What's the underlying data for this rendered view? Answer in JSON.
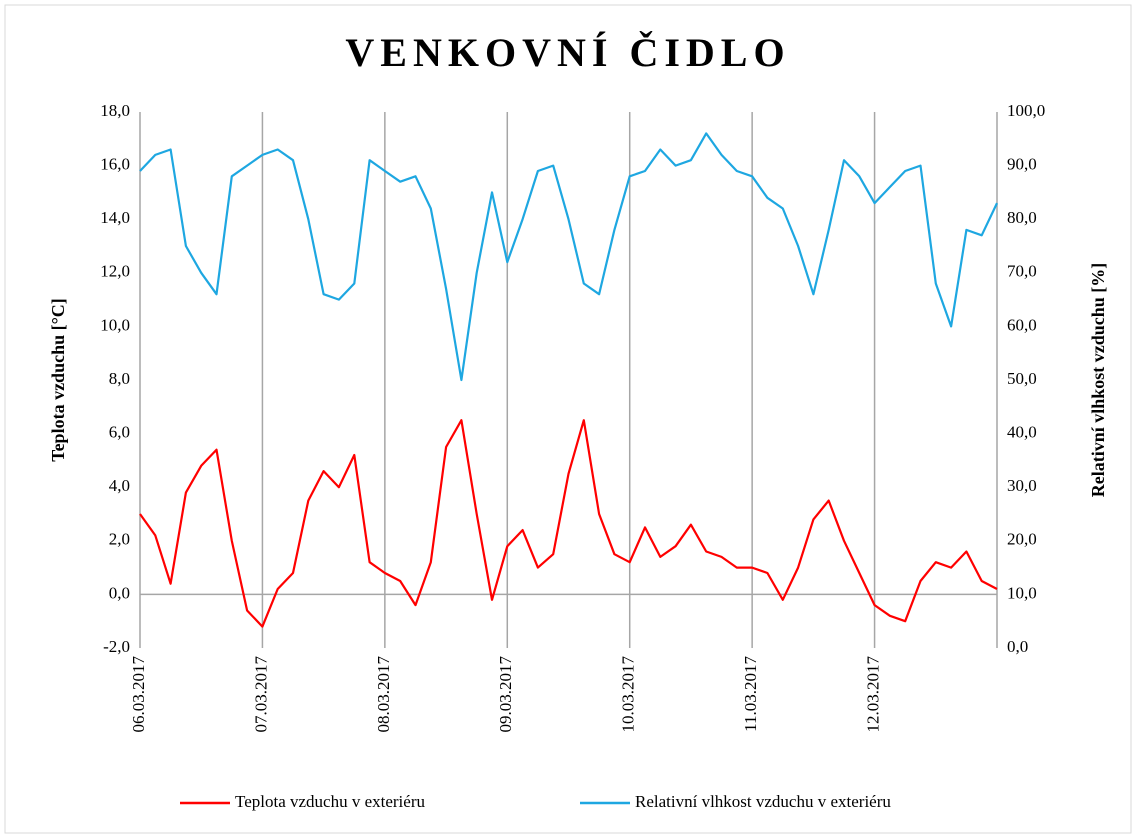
{
  "chart_data": {
    "type": "line",
    "title": "VENKOVNÍ ČIDLO",
    "y_label": "Teplota vzduchu [°C]",
    "y2_label": "Relativní vlhkost vzduchu [%]",
    "categories": [
      "06.03.2017",
      null,
      null,
      null,
      null,
      null,
      null,
      null,
      "07.03.2017",
      null,
      null,
      null,
      null,
      null,
      null,
      null,
      "08.03.2017",
      null,
      null,
      null,
      null,
      null,
      null,
      null,
      "09.03.2017",
      null,
      null,
      null,
      null,
      null,
      null,
      null,
      "10.03.2017",
      null,
      null,
      null,
      null,
      null,
      null,
      null,
      "11.03.2017",
      null,
      null,
      null,
      null,
      null,
      null,
      null,
      "12.03.2017",
      null,
      null,
      null,
      null,
      null,
      null,
      null,
      null
    ],
    "series": [
      {
        "name": "Teplota vzduchu v exteriéru",
        "color": "#ff0000",
        "axis": "y",
        "values": [
          3.0,
          2.2,
          0.4,
          3.8,
          4.8,
          5.4,
          2.0,
          -0.6,
          -1.2,
          0.2,
          0.8,
          3.5,
          4.6,
          4.0,
          5.2,
          1.2,
          0.8,
          0.5,
          -0.4,
          1.2,
          5.5,
          6.5,
          3.0,
          -0.2,
          1.8,
          2.4,
          1.0,
          1.5,
          4.5,
          6.5,
          3.0,
          1.5,
          1.2,
          2.5,
          1.4,
          1.8,
          2.6,
          1.6,
          1.4,
          1.0,
          1.0,
          0.8,
          -0.2,
          1.0,
          2.8,
          3.5,
          2.0,
          0.8,
          -0.4,
          -0.8,
          -1.0,
          0.5,
          1.2,
          1.0,
          1.6,
          0.5,
          0.2
        ]
      },
      {
        "name": "Relativní vlhkost vzduchu v exteriéru",
        "color": "#1ea7e1",
        "axis": "y2",
        "values": [
          89,
          92,
          93,
          75,
          70,
          66,
          88,
          90,
          92,
          93,
          91,
          80,
          66,
          65,
          68,
          91,
          89,
          87,
          88,
          82,
          67,
          50,
          70,
          85,
          72,
          80,
          89,
          90,
          80,
          68,
          66,
          78,
          88,
          89,
          93,
          90,
          91,
          96,
          92,
          89,
          88,
          84,
          82,
          75,
          66,
          78,
          91,
          88,
          83,
          86,
          89,
          90,
          68,
          60,
          78,
          77,
          83
        ]
      }
    ],
    "ylim": [
      -2,
      18
    ],
    "yticks": [
      {
        "value": -2,
        "label": "-2,0"
      },
      {
        "value": 0,
        "label": "0,0"
      },
      {
        "value": 2,
        "label": "2,0"
      },
      {
        "value": 4,
        "label": "4,0"
      },
      {
        "value": 6,
        "label": "6,0"
      },
      {
        "value": 8,
        "label": "8,0"
      },
      {
        "value": 10,
        "label": "10,0"
      },
      {
        "value": 12,
        "label": "12,0"
      },
      {
        "value": 14,
        "label": "14,0"
      },
      {
        "value": 16,
        "label": "16,0"
      },
      {
        "value": 18,
        "label": "18,0"
      }
    ],
    "y2lim": [
      0,
      100
    ],
    "y2ticks": [
      {
        "value": 0,
        "label": "0,0"
      },
      {
        "value": 10,
        "label": "10,0"
      },
      {
        "value": 20,
        "label": "20,0"
      },
      {
        "value": 30,
        "label": "30,0"
      },
      {
        "value": 40,
        "label": "40,0"
      },
      {
        "value": 50,
        "label": "50,0"
      },
      {
        "value": 60,
        "label": "60,0"
      },
      {
        "value": 70,
        "label": "70,0"
      },
      {
        "value": 80,
        "label": "80,0"
      },
      {
        "value": 90,
        "label": "90,0"
      },
      {
        "value": 100,
        "label": "100,0"
      }
    ],
    "grid": true,
    "legend": "bottom"
  }
}
